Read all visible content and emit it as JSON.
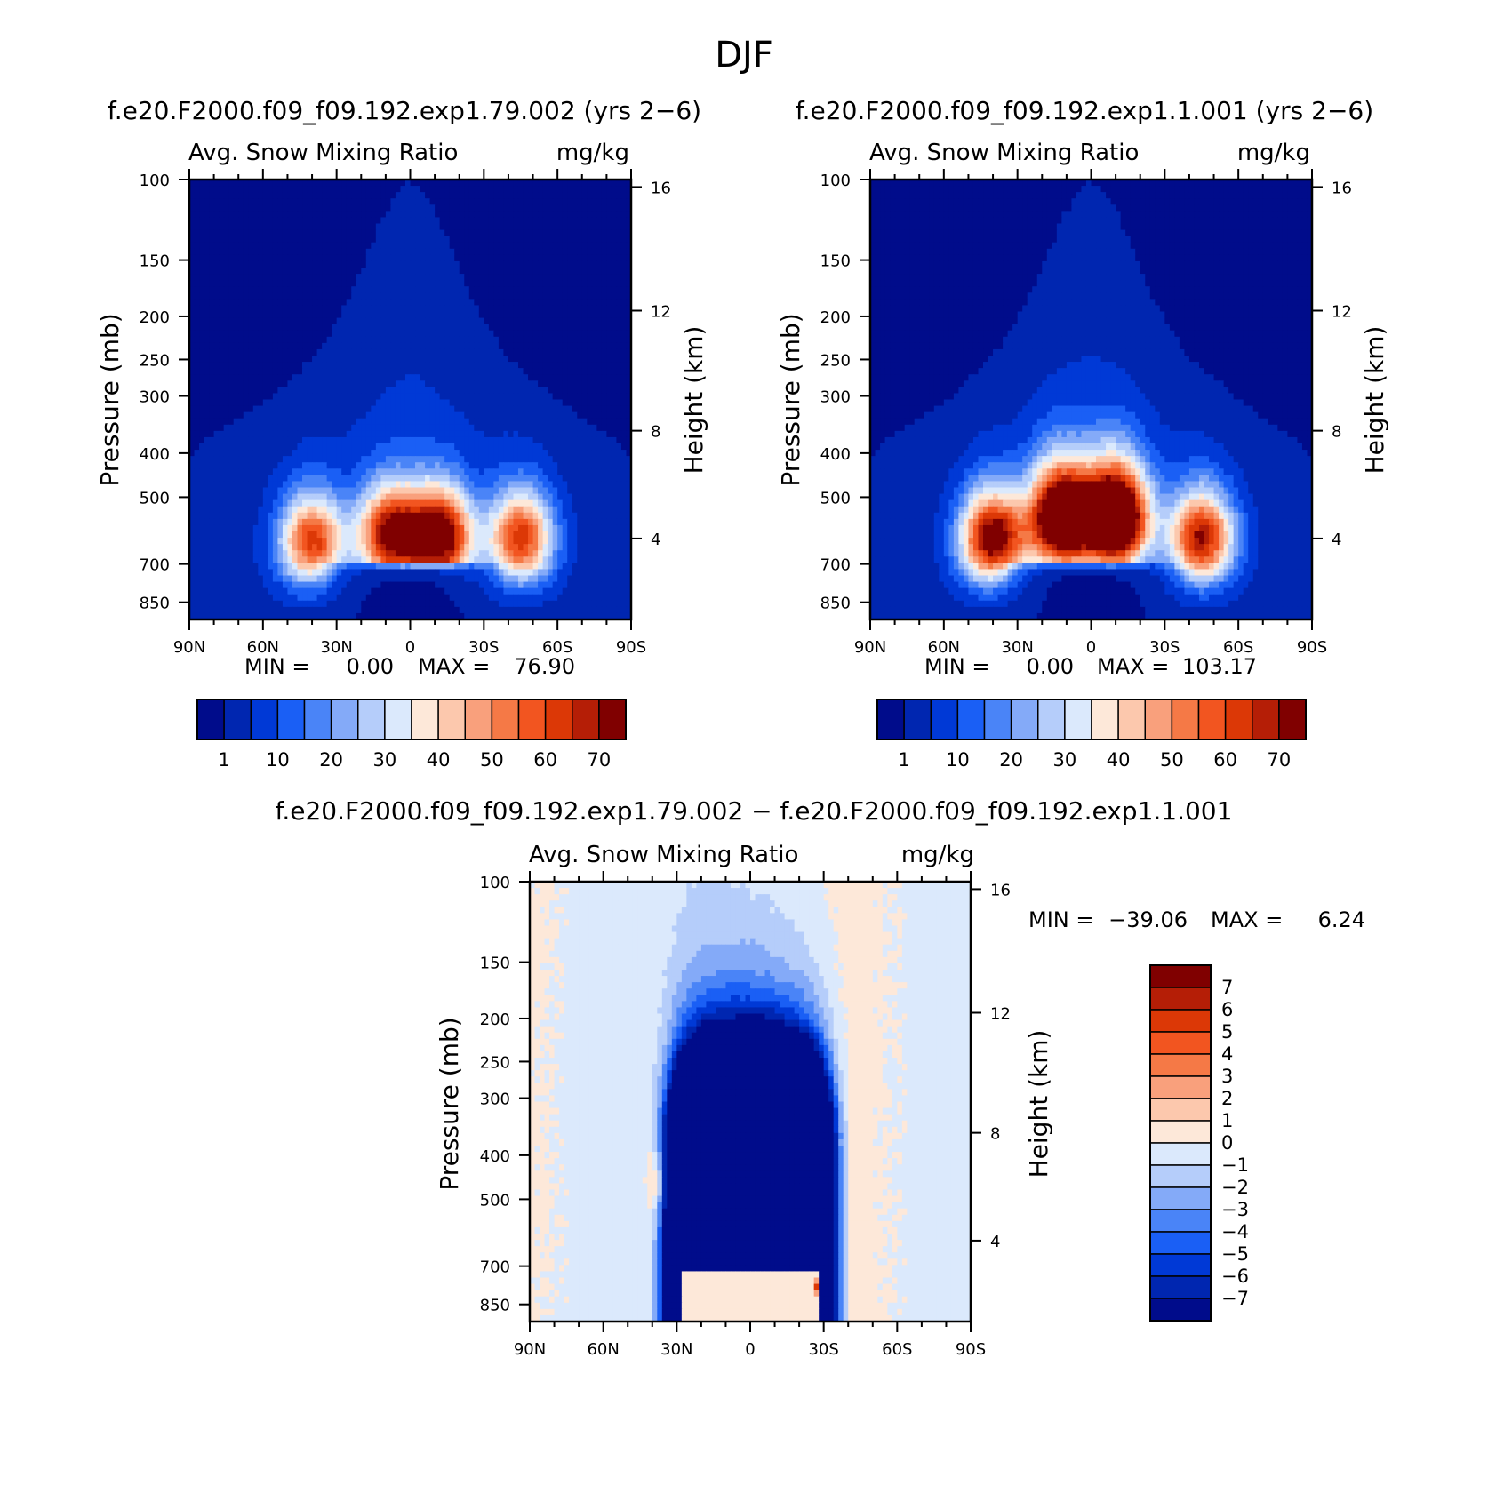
{
  "page_title": "DJF",
  "colors": {
    "seq": [
      "#000c8b",
      "#0026b0",
      "#0039d6",
      "#1a5ff5",
      "#4a84f7",
      "#84aaf8",
      "#b5cdfa",
      "#dbe9fc",
      "#fde8d9",
      "#fcc8ad",
      "#f9a07c",
      "#f57946",
      "#f25520",
      "#dc3806",
      "#b51e06",
      "#800000"
    ],
    "diff": [
      "#000c8b",
      "#0026b0",
      "#0039d6",
      "#1a5ff5",
      "#4a84f7",
      "#84aaf8",
      "#b5cdfa",
      "#dbe9fc",
      "#fde8d9",
      "#fcc8ad",
      "#f9a07c",
      "#f57946",
      "#f25520",
      "#dc3806",
      "#b51e06",
      "#800000"
    ]
  },
  "chart_data": [
    {
      "type": "heatmap",
      "run_title": "f.e20.F2000.f09_f09.192.exp1.79.002 (yrs 2−6)",
      "title": "Avg. Snow Mixing Ratio",
      "units": "mg/kg",
      "xlabel": "",
      "ylabel": "Pressure (mb)",
      "y2label": "Height (km)",
      "x_ticks": [
        "90N",
        "60N",
        "30N",
        "0",
        "30S",
        "60S",
        "90S"
      ],
      "y_ticks": [
        "100",
        "150",
        "200",
        "250",
        "300",
        "400",
        "500",
        "700",
        "850"
      ],
      "y2_ticks": [
        "16",
        "12",
        "8",
        "4"
      ],
      "stats": {
        "min_label": "MIN =",
        "min": "0.00",
        "max_label": "MAX =",
        "max": "76.90"
      },
      "colorbar_labels": [
        "1",
        "10",
        "20",
        "30",
        "40",
        "50",
        "60",
        "70"
      ],
      "levels": [
        1,
        5,
        10,
        15,
        20,
        25,
        30,
        35,
        40,
        45,
        50,
        55,
        60,
        65,
        70
      ],
      "max_value": 76.9,
      "centers": [
        {
          "lat": -45,
          "p": 620,
          "val": 60
        },
        {
          "lat": -12,
          "p": 615,
          "val": 76.9
        },
        {
          "lat": 8,
          "p": 610,
          "val": 68
        },
        {
          "lat": 40,
          "p": 630,
          "val": 58
        }
      ]
    },
    {
      "type": "heatmap",
      "run_title": "f.e20.F2000.f09_f09.192.exp1.1.001 (yrs 2−6)",
      "title": "Avg. Snow Mixing Ratio",
      "units": "mg/kg",
      "xlabel": "",
      "ylabel": "Pressure (mb)",
      "y2label": "Height (km)",
      "x_ticks": [
        "90N",
        "60N",
        "30N",
        "0",
        "30S",
        "60S",
        "90S"
      ],
      "y_ticks": [
        "100",
        "150",
        "200",
        "250",
        "300",
        "400",
        "500",
        "700",
        "850"
      ],
      "y2_ticks": [
        "16",
        "12",
        "8",
        "4"
      ],
      "stats": {
        "min_label": "MIN =",
        "min": "0.00",
        "max_label": "MAX =",
        "max": "103.17"
      },
      "colorbar_labels": [
        "1",
        "10",
        "20",
        "30",
        "40",
        "50",
        "60",
        "70"
      ],
      "levels": [
        1,
        5,
        10,
        15,
        20,
        25,
        30,
        35,
        40,
        45,
        50,
        55,
        60,
        65,
        70
      ],
      "max_value": 103.17,
      "centers": [
        {
          "lat": -45,
          "p": 620,
          "val": 66
        },
        {
          "lat": -10,
          "p": 560,
          "val": 103.17
        },
        {
          "lat": 12,
          "p": 560,
          "val": 96
        },
        {
          "lat": 40,
          "p": 620,
          "val": 74
        }
      ]
    },
    {
      "type": "heatmap",
      "run_title": "f.e20.F2000.f09_f09.192.exp1.79.002 − f.e20.F2000.f09_f09.192.exp1.1.001",
      "title": "Avg. Snow Mixing Ratio",
      "units": "mg/kg",
      "xlabel": "",
      "ylabel": "Pressure (mb)",
      "y2label": "Height (km)",
      "x_ticks": [
        "90N",
        "60N",
        "30N",
        "0",
        "30S",
        "60S",
        "90S"
      ],
      "y_ticks": [
        "100",
        "150",
        "200",
        "250",
        "300",
        "400",
        "500",
        "700",
        "850"
      ],
      "y2_ticks": [
        "16",
        "12",
        "8",
        "4"
      ],
      "stats": {
        "min_label": "MIN =",
        "min": "−39.06",
        "max_label": "MAX =",
        "max": "6.24"
      },
      "colorbar_labels": [
        "7",
        "6",
        "5",
        "4",
        "3",
        "2",
        "1",
        "0",
        "−1",
        "−2",
        "−3",
        "−4",
        "−5",
        "−6",
        "−7"
      ],
      "levels": [
        -7,
        -6,
        -5,
        -4,
        -3,
        -2,
        -1,
        0,
        1,
        2,
        3,
        4,
        5,
        6,
        7
      ],
      "min_value": -39.06,
      "max_value": 6.24
    }
  ]
}
